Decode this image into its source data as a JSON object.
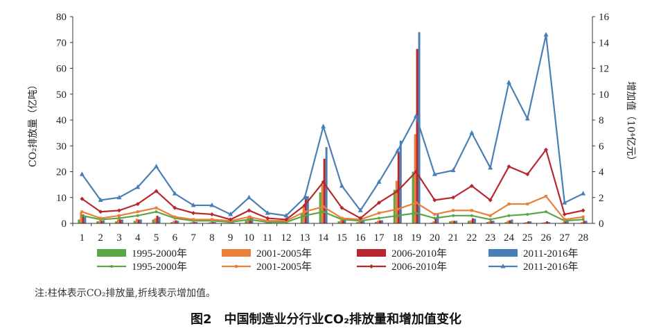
{
  "chart_data": {
    "type": "bar",
    "categories": [
      "1",
      "2",
      "3",
      "4",
      "5",
      "6",
      "7",
      "8",
      "9",
      "10",
      "11",
      "12",
      "13",
      "14",
      "15",
      "16",
      "17",
      "18",
      "19",
      "20",
      "21",
      "22",
      "23",
      "24",
      "25",
      "26",
      "27",
      "28"
    ],
    "left_axis": {
      "label": "CO₂排放量（亿吨）",
      "range": [
        0,
        80
      ],
      "ticks": [
        "0",
        "10",
        "20",
        "30",
        "40",
        "50",
        "60",
        "70",
        "80"
      ]
    },
    "right_axis": {
      "label": "增加值（10⁴亿元）",
      "range": [
        0,
        16
      ],
      "ticks": [
        "0",
        "2",
        "4",
        "6",
        "8",
        "10",
        "12",
        "14",
        "16"
      ]
    },
    "bar_series": [
      {
        "name": "1995-2000年",
        "color": "#5aa544",
        "values": [
          1.5,
          0.8,
          0.8,
          1.0,
          1.5,
          0.5,
          0.3,
          0.3,
          0.2,
          1.0,
          0.2,
          0.1,
          4.0,
          12.0,
          0.8,
          0.5,
          0.6,
          13.0,
          20.0,
          0.3,
          0.8,
          1.0,
          0.5,
          0.5,
          0.3,
          0.3,
          0.2,
          0.2
        ]
      },
      {
        "name": "2001-2005年",
        "color": "#e97f3a",
        "values": [
          4.5,
          1.0,
          1.5,
          1.8,
          2.0,
          1.0,
          0.5,
          0.5,
          0.3,
          2.5,
          0.3,
          0.2,
          7.0,
          15.0,
          1.2,
          1.0,
          1.0,
          16.5,
          34.5,
          0.8,
          1.0,
          1.2,
          0.8,
          1.0,
          0.5,
          0.5,
          0.5,
          0.5
        ]
      },
      {
        "name": "2006-2010年",
        "color": "#b7282e",
        "values": [
          3.5,
          1.0,
          1.5,
          1.5,
          3.0,
          1.2,
          0.5,
          0.5,
          0.3,
          3.0,
          0.3,
          0.2,
          10.5,
          25.0,
          1.5,
          1.2,
          1.2,
          27.5,
          67.5,
          2.0,
          1.0,
          2.0,
          1.0,
          1.2,
          0.8,
          0.8,
          1.0,
          1.0
        ]
      },
      {
        "name": "2011-2016年",
        "color": "#4a7fb5",
        "values": [
          3.0,
          1.2,
          1.5,
          1.5,
          2.5,
          1.0,
          0.5,
          0.5,
          0.3,
          2.5,
          0.3,
          0.2,
          10.5,
          29.5,
          1.5,
          1.2,
          1.2,
          32.0,
          74.0,
          3.5,
          1.0,
          1.8,
          1.0,
          1.5,
          0.8,
          0.5,
          1.0,
          1.0
        ]
      }
    ],
    "line_series": [
      {
        "name": "1995-2000年",
        "color": "#5aa544",
        "marker": "circle",
        "values": [
          0.6,
          0.3,
          0.4,
          0.6,
          0.9,
          0.4,
          0.2,
          0.2,
          0.1,
          0.3,
          0.1,
          0.1,
          0.6,
          0.9,
          0.3,
          0.2,
          0.4,
          0.6,
          0.8,
          0.4,
          0.6,
          0.6,
          0.3,
          0.6,
          0.7,
          0.9,
          0.2,
          0.3
        ]
      },
      {
        "name": "2001-2005年",
        "color": "#e97f3a",
        "marker": "square",
        "values": [
          0.9,
          0.4,
          0.6,
          0.9,
          1.2,
          0.5,
          0.3,
          0.3,
          0.2,
          0.5,
          0.2,
          0.2,
          0.9,
          1.3,
          0.4,
          0.3,
          0.8,
          1.1,
          1.6,
          0.7,
          1.0,
          1.0,
          0.6,
          1.5,
          1.5,
          2.1,
          0.3,
          0.5
        ]
      },
      {
        "name": "2006-2010年",
        "color": "#b7282e",
        "marker": "diamond",
        "values": [
          1.9,
          0.9,
          1.0,
          1.5,
          2.5,
          1.2,
          0.8,
          0.7,
          0.3,
          1.0,
          0.4,
          0.3,
          1.4,
          3.2,
          1.2,
          0.4,
          1.6,
          2.5,
          4.0,
          1.8,
          2.0,
          2.9,
          1.8,
          4.4,
          3.8,
          5.7,
          0.7,
          1.0
        ]
      },
      {
        "name": "2011-2016年",
        "color": "#4a7fb5",
        "marker": "triangle",
        "values": [
          3.8,
          1.8,
          2.0,
          2.8,
          4.4,
          2.3,
          1.4,
          1.4,
          0.7,
          2.0,
          0.8,
          0.6,
          2.0,
          7.5,
          2.9,
          1.0,
          3.2,
          5.6,
          8.3,
          3.8,
          4.1,
          7.0,
          4.3,
          10.9,
          8.1,
          14.6,
          1.6,
          2.3
        ]
      }
    ],
    "legend_placement": "bottom",
    "grid": false
  },
  "note": "注:柱体表示CO₂排放量,折线表示增加值。",
  "caption": "图2　中国制造业分行业CO₂排放量和增加值变化"
}
